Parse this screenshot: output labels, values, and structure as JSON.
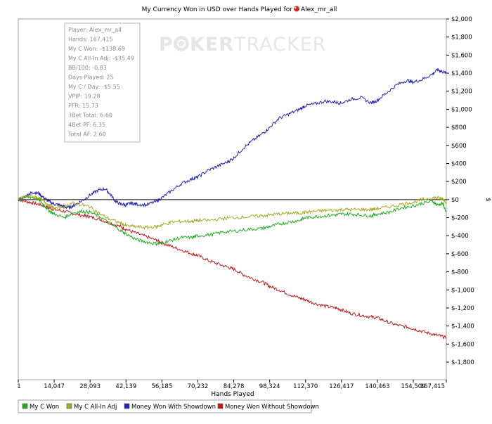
{
  "chart_data": {
    "type": "line",
    "title": "My Currency Won in USD over Hands Played for",
    "player_name": "Alex_mr_all",
    "watermark": {
      "left": "P",
      "mid": "KER",
      "right": "TRACKER"
    },
    "xlabel": "Hands Played",
    "ylabel": "$",
    "xlim": [
      1,
      167415
    ],
    "ylim": [
      -2000,
      2000
    ],
    "x_ticks": [
      1,
      14047,
      28093,
      42139,
      56185,
      70232,
      84278,
      98324,
      112370,
      126417,
      140463,
      154509,
      167415
    ],
    "x_tick_labels": [
      "1",
      "14,047",
      "28,093",
      "42,139",
      "56,185",
      "70,232",
      "84,278",
      "98,324",
      "112,370",
      "126,417",
      "140,463",
      "154,509",
      "167,415"
    ],
    "y_ticks": [
      2000,
      1800,
      1600,
      1400,
      1200,
      1000,
      800,
      600,
      400,
      200,
      0,
      -200,
      -400,
      -600,
      -800,
      -1000,
      -1200,
      -1400,
      -1600,
      -1800
    ],
    "y_tick_labels": [
      "$2,000",
      "$1,800",
      "$1,600",
      "$1,400",
      "$1,200",
      "$1,000",
      "$800",
      "$600",
      "$400",
      "$200",
      "$0",
      "$-200",
      "$-400",
      "$-600",
      "$-800",
      "$-1,000",
      "$-1,200",
      "$-1,400",
      "$-1,600",
      "$-1,800"
    ],
    "stats_box": [
      "Player: Alex_mr_all",
      "Hands: 167,415",
      "My C Won: -$138.69",
      "My C All-In Adj: -$35.49",
      "BB/100: -0.83",
      "Days Played: 25",
      "My C / Day: -$5.55",
      "VPIP: 19.28",
      "PFR: 15.73",
      "3Bet Total: 6.60",
      "4Bet PF: 6.35",
      "Total AF: 2.60"
    ],
    "series": [
      {
        "name": "My C Won",
        "color": "#1fae1f",
        "x": [
          1,
          2000,
          5000,
          8000,
          10000,
          12000,
          14047,
          18000,
          21000,
          25000,
          28093,
          32000,
          36000,
          40000,
          42139,
          46000,
          50000,
          54000,
          56185,
          60000,
          64000,
          68000,
          70232,
          75000,
          80000,
          84278,
          90000,
          95000,
          98324,
          102000,
          106000,
          110000,
          112370,
          116000,
          120000,
          124000,
          126417,
          130000,
          134000,
          138000,
          140463,
          145000,
          150000,
          154509,
          158000,
          162000,
          164000,
          166000,
          167415
        ],
        "values": [
          0,
          20,
          30,
          0,
          -60,
          -120,
          -160,
          -200,
          -150,
          -130,
          -140,
          -190,
          -270,
          -340,
          -380,
          -440,
          -470,
          -490,
          -480,
          -450,
          -420,
          -420,
          -400,
          -390,
          -360,
          -350,
          -330,
          -320,
          -300,
          -270,
          -250,
          -230,
          -200,
          -190,
          -180,
          -170,
          -160,
          -160,
          -170,
          -180,
          -160,
          -140,
          -90,
          -70,
          -40,
          -20,
          -60,
          -40,
          -140
        ]
      },
      {
        "name": "My C All-In Adj",
        "color": "#a8a81e",
        "x": [
          1,
          2000,
          5000,
          8000,
          10000,
          12000,
          14047,
          18000,
          21000,
          25000,
          28093,
          32000,
          36000,
          40000,
          42139,
          46000,
          50000,
          54000,
          56185,
          60000,
          64000,
          68000,
          70232,
          75000,
          80000,
          84278,
          90000,
          95000,
          98324,
          102000,
          106000,
          110000,
          112370,
          116000,
          120000,
          124000,
          126417,
          130000,
          134000,
          138000,
          140463,
          145000,
          150000,
          154509,
          158000,
          162000,
          164000,
          166000,
          167415
        ],
        "values": [
          0,
          30,
          40,
          20,
          -20,
          -60,
          -100,
          -80,
          -40,
          -60,
          -80,
          -160,
          -220,
          -260,
          -290,
          -300,
          -310,
          -300,
          -280,
          -250,
          -240,
          -240,
          -230,
          -230,
          -210,
          -200,
          -190,
          -180,
          -170,
          -160,
          -150,
          -150,
          -140,
          -130,
          -120,
          -120,
          -110,
          -110,
          -110,
          -110,
          -100,
          -80,
          -50,
          -30,
          0,
          20,
          20,
          10,
          -30
        ]
      },
      {
        "name": "Money Won With Showdown",
        "color": "#2323b4",
        "x": [
          1,
          2000,
          4000,
          6000,
          8000,
          10000,
          12000,
          14047,
          16000,
          18000,
          20000,
          22000,
          25000,
          28093,
          31000,
          34000,
          36000,
          38000,
          40000,
          42139,
          44000,
          46000,
          50000,
          54000,
          56185,
          60000,
          64000,
          68000,
          70232,
          74000,
          78000,
          82000,
          84278,
          88000,
          92000,
          96000,
          98324,
          102000,
          106000,
          110000,
          112370,
          116000,
          120000,
          124000,
          126417,
          130000,
          134000,
          138000,
          140463,
          144000,
          148000,
          152000,
          154509,
          158000,
          162000,
          164000,
          165500,
          167415
        ],
        "values": [
          0,
          20,
          60,
          80,
          70,
          20,
          -20,
          -50,
          -60,
          -80,
          -90,
          -60,
          -10,
          50,
          100,
          120,
          60,
          -20,
          -50,
          -60,
          -40,
          -50,
          -60,
          -20,
          20,
          100,
          180,
          230,
          250,
          320,
          370,
          420,
          460,
          570,
          660,
          740,
          800,
          900,
          950,
          1000,
          1040,
          1060,
          1090,
          1080,
          1070,
          1110,
          1130,
          1070,
          1100,
          1180,
          1270,
          1320,
          1300,
          1330,
          1390,
          1440,
          1420,
          1400
        ]
      },
      {
        "name": "Money Won Without Showdown",
        "color": "#c41a1a",
        "x": [
          1,
          3000,
          6000,
          9000,
          12000,
          14047,
          18000,
          22000,
          26000,
          28093,
          32000,
          36000,
          40000,
          42139,
          46000,
          50000,
          54000,
          56185,
          60000,
          64000,
          68000,
          70232,
          74000,
          78000,
          82000,
          84278,
          88000,
          92000,
          96000,
          98324,
          102000,
          106000,
          110000,
          112370,
          116000,
          120000,
          124000,
          126417,
          130000,
          134000,
          138000,
          140463,
          144000,
          148000,
          152000,
          154509,
          158000,
          162000,
          165000,
          167415
        ],
        "values": [
          0,
          -20,
          -40,
          -60,
          -90,
          -110,
          -130,
          -160,
          -180,
          -190,
          -220,
          -260,
          -300,
          -330,
          -370,
          -410,
          -450,
          -480,
          -520,
          -560,
          -600,
          -620,
          -670,
          -710,
          -750,
          -770,
          -830,
          -880,
          -920,
          -960,
          -1000,
          -1050,
          -1090,
          -1110,
          -1150,
          -1180,
          -1200,
          -1220,
          -1260,
          -1280,
          -1300,
          -1310,
          -1350,
          -1390,
          -1410,
          -1430,
          -1460,
          -1490,
          -1510,
          -1530
        ]
      }
    ],
    "legend": [
      "My C Won",
      "My C All-In Adj",
      "Money Won With Showdown",
      "Money Won Without Showdown"
    ]
  }
}
